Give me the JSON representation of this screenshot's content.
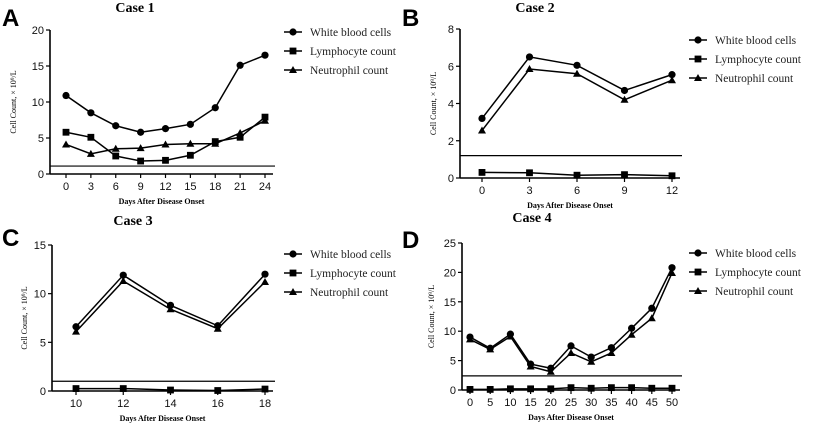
{
  "chart_data": [
    {
      "type": "line",
      "panel": "A",
      "title": "Case 1",
      "xlabel": "Days After Disease Onset",
      "ylabel": "Cell Count, × 10⁹/L",
      "x": [
        0,
        3,
        6,
        9,
        12,
        15,
        18,
        21,
        24
      ],
      "xticks": [
        "0",
        "3",
        "6",
        "9",
        "12",
        "15",
        "18",
        "21",
        "24"
      ],
      "yticks": [
        "0",
        "5",
        "10",
        "15",
        "20"
      ],
      "ylim": [
        0,
        20
      ],
      "reference_line": 1.1,
      "series": [
        {
          "name": "White blood cells",
          "marker": "circle",
          "values": [
            10.9,
            8.5,
            6.7,
            5.8,
            6.3,
            6.9,
            9.2,
            15.1,
            16.5
          ]
        },
        {
          "name": "Lymphocyte count",
          "marker": "square",
          "values": [
            5.8,
            5.1,
            2.5,
            1.8,
            1.9,
            2.6,
            4.5,
            5.1,
            7.9
          ]
        },
        {
          "name": "Neutrophil count",
          "marker": "triangle",
          "values": [
            4.1,
            2.8,
            3.5,
            3.6,
            4.1,
            4.2,
            4.2,
            5.7,
            7.4
          ]
        }
      ],
      "legend": "right"
    },
    {
      "type": "line",
      "panel": "B",
      "title": "Case 2",
      "xlabel": "Days After Disease Onset",
      "ylabel": "Cell Count, × 10⁹/L",
      "x": [
        0,
        3,
        6,
        9,
        12
      ],
      "xticks": [
        "0",
        "3",
        "6",
        "9",
        "12"
      ],
      "yticks": [
        "0",
        "2",
        "4",
        "6",
        "8"
      ],
      "ylim": [
        0,
        8
      ],
      "reference_line": 1.2,
      "series": [
        {
          "name": "White blood cells",
          "marker": "circle",
          "values": [
            3.2,
            6.5,
            6.05,
            4.7,
            5.55
          ]
        },
        {
          "name": "Lymphocyte count",
          "marker": "square",
          "values": [
            0.3,
            0.28,
            0.15,
            0.18,
            0.12
          ]
        },
        {
          "name": "Neutrophil count",
          "marker": "triangle",
          "values": [
            2.55,
            5.85,
            5.6,
            4.2,
            5.25
          ]
        }
      ],
      "legend": "right"
    },
    {
      "type": "line",
      "panel": "C",
      "title": "Case 3",
      "xlabel": "Days After Disease Onset",
      "ylabel": "Cell Count, × 10⁹/L",
      "x": [
        10,
        12,
        14,
        16,
        18
      ],
      "xticks": [
        "10",
        "12",
        "14",
        "16",
        "18"
      ],
      "yticks": [
        "0",
        "5",
        "10",
        "15"
      ],
      "ylim": [
        0,
        15
      ],
      "reference_line": 1.0,
      "series": [
        {
          "name": "White blood cells",
          "marker": "circle",
          "values": [
            6.6,
            11.9,
            8.8,
            6.7,
            12.0
          ]
        },
        {
          "name": "Lymphocyte count",
          "marker": "square",
          "values": [
            0.25,
            0.25,
            0.1,
            0.05,
            0.2
          ]
        },
        {
          "name": "Neutrophil count",
          "marker": "triangle",
          "values": [
            6.1,
            11.3,
            8.4,
            6.4,
            11.2
          ]
        }
      ],
      "legend": "right"
    },
    {
      "type": "line",
      "panel": "D",
      "title": "Case 4",
      "xlabel": "Days After Disease Onset",
      "ylabel": "Cell Count, × 10⁹/L",
      "x": [
        0,
        5,
        10,
        15,
        20,
        25,
        30,
        35,
        40,
        45,
        50
      ],
      "xticks": [
        "0",
        "5",
        "10",
        "15",
        "20",
        "25",
        "30",
        "35",
        "40",
        "45",
        "50"
      ],
      "yticks": [
        "0",
        "5",
        "10",
        "15",
        "20",
        "25"
      ],
      "ylim": [
        0,
        25
      ],
      "reference_line": 2.4,
      "series": [
        {
          "name": "White blood cells",
          "marker": "circle",
          "values": [
            9.0,
            7.1,
            9.5,
            4.4,
            3.7,
            7.5,
            5.6,
            7.2,
            10.5,
            13.9,
            20.8
          ]
        },
        {
          "name": "Lymphocyte count",
          "marker": "square",
          "values": [
            0.1,
            0.1,
            0.2,
            0.2,
            0.2,
            0.4,
            0.3,
            0.4,
            0.4,
            0.3,
            0.3
          ]
        },
        {
          "name": "Neutrophil count",
          "marker": "triangle",
          "values": [
            8.6,
            6.9,
            9.1,
            4.0,
            3.1,
            6.3,
            4.8,
            6.3,
            9.4,
            12.2,
            19.9
          ]
        }
      ],
      "legend": "right"
    }
  ]
}
